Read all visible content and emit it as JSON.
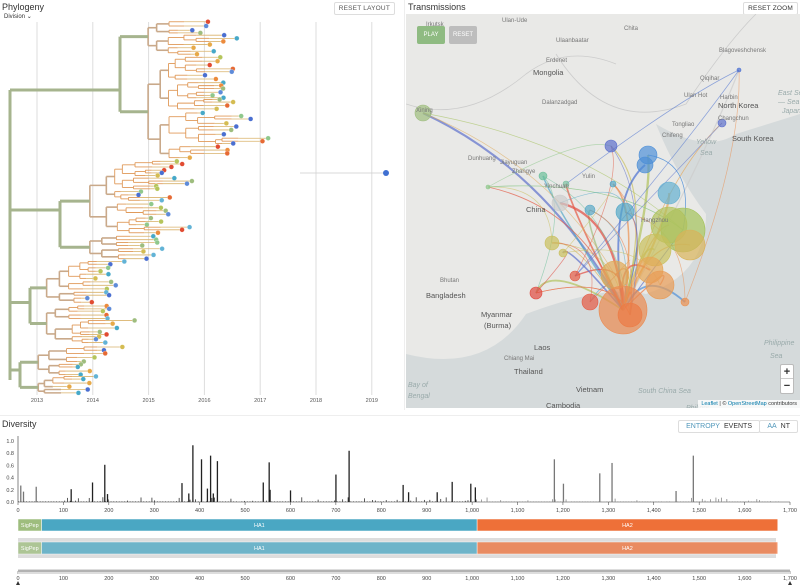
{
  "phylogeny": {
    "title": "Phylogeny",
    "color_by": "Division",
    "reset_label": "RESET LAYOUT",
    "years": [
      "2013",
      "2014",
      "2015",
      "2016",
      "2017",
      "2018",
      "2019"
    ],
    "palette": [
      "#9ebd7e",
      "#b5c55b",
      "#d4bc52",
      "#e7a948",
      "#ec8b3c",
      "#e66a34",
      "#e14b31",
      "#5e8bd9",
      "#4a6fd1",
      "#62b3d6",
      "#46a8c8",
      "#8fc88c"
    ],
    "trunk_color": "#a6b48e"
  },
  "transmissions": {
    "title": "Transmissions",
    "reset_zoom_label": "RESET ZOOM",
    "play_label": "PLAY",
    "reset_label": "RESET",
    "play_color": "#8fbb82",
    "reset_color": "#bdbdbd",
    "zoom_in": "+",
    "zoom_out": "−",
    "attribution": {
      "leaflet": "Leaflet",
      "sep": " | © ",
      "osm": "OpenStreetMap",
      "suffix": " contributors"
    },
    "labels": {
      "big": [
        "Mongolia",
        "China",
        "North Korea",
        "South Korea",
        "Bangladesh",
        "Myanmar",
        "(Burma)",
        "Laos",
        "Thailand",
        "Vietnam",
        "Cambodia"
      ],
      "sea": [
        "East Sea",
        "— Sea of",
        "Japan",
        "Yellow",
        "Sea",
        "Bay of",
        "Bengal",
        "Philippine",
        "Sea",
        "South China Sea",
        "Philippi"
      ],
      "small": [
        "Irkutsk",
        "Ulan-Ude",
        "Chita",
        "Ulaanbaatar",
        "Erdenet",
        "Dalanzadgad",
        "Harbin",
        "Changchun",
        "Chifeng",
        "Dunhuang",
        "Jiayuguan",
        "Zhangye",
        "Yinchuan",
        "Xining",
        "Yulin",
        "Qiqihar",
        "Ulan Hot",
        "Tongliao",
        "Bhutan",
        "Chiang Mai",
        "Hangzhou",
        "Blagoveshchensk"
      ]
    }
  },
  "diversity": {
    "title": "Diversity",
    "entropy_label": "ENTROPY",
    "events_label": "EVENTS",
    "aa_label": "AA",
    "nt_label": "NT",
    "y_ticks": [
      "0.0",
      "0.2",
      "0.4",
      "0.6",
      "0.8",
      "1.0"
    ],
    "x_ticks": [
      "0",
      "100",
      "200",
      "300",
      "400",
      "500",
      "600",
      "700",
      "800",
      "900",
      "1,000",
      "1,100",
      "1,200",
      "1,300",
      "1,400",
      "1,500",
      "1,600",
      "1,700"
    ],
    "genes": [
      {
        "name": "SigPep",
        "start": 0,
        "end": 52,
        "color": "#9ebd7e"
      },
      {
        "name": "HA1",
        "start": 52,
        "end": 1011,
        "color": "#4aa7c3"
      },
      {
        "name": "HA2",
        "start": 1011,
        "end": 1673,
        "color": "#ee7038"
      }
    ],
    "peaks": [
      [
        6,
        0.27
      ],
      [
        12,
        0.17
      ],
      [
        40,
        0.25
      ],
      [
        117,
        0.21
      ],
      [
        164,
        0.32
      ],
      [
        191,
        0.61
      ],
      [
        197,
        0.13
      ],
      [
        361,
        0.31
      ],
      [
        376,
        0.14
      ],
      [
        385,
        0.93
      ],
      [
        404,
        0.7
      ],
      [
        417,
        0.22
      ],
      [
        424,
        0.76
      ],
      [
        430,
        0.14
      ],
      [
        439,
        0.67
      ],
      [
        540,
        0.32
      ],
      [
        553,
        0.65
      ],
      [
        555,
        0.2
      ],
      [
        600,
        0.19
      ],
      [
        700,
        0.45
      ],
      [
        729,
        0.84
      ],
      [
        848,
        0.28
      ],
      [
        860,
        0.16
      ],
      [
        923,
        0.16
      ],
      [
        956,
        0.33
      ],
      [
        997,
        0.3
      ],
      [
        1007,
        0.24
      ],
      [
        1181,
        0.7
      ],
      [
        1201,
        0.3
      ],
      [
        1281,
        0.47
      ],
      [
        1308,
        0.64
      ],
      [
        1449,
        0.18
      ],
      [
        1487,
        0.76
      ]
    ]
  }
}
